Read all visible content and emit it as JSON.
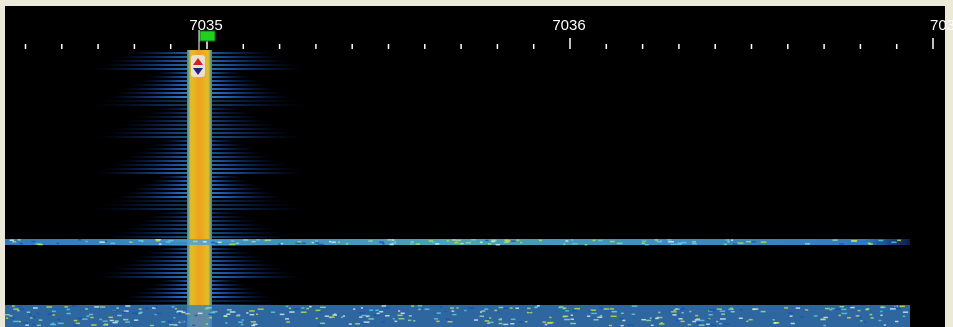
{
  "ruler": {
    "labels": [
      "7035",
      "7036",
      "703"
    ]
  }
}
